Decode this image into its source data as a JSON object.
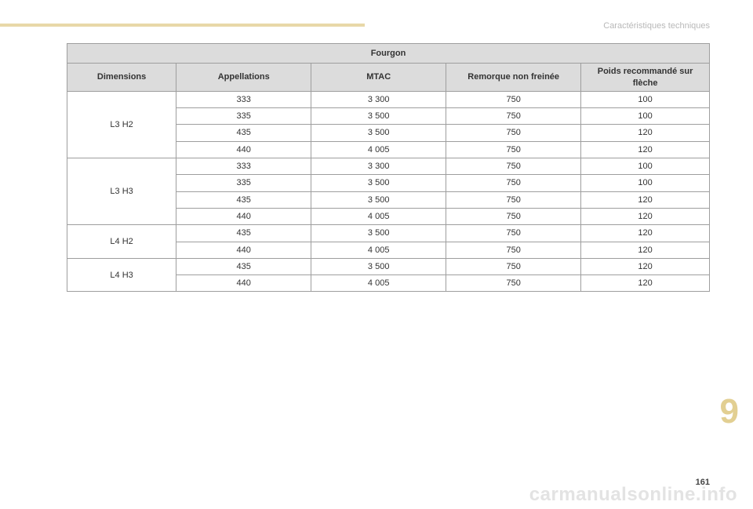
{
  "breadcrumb": "Caractéristiques techniques",
  "section_number": "9",
  "page_number": "161",
  "watermark": "carmanualsonline.info",
  "table": {
    "type": "table",
    "title": "Fourgon",
    "columns": [
      "Dimensions",
      "Appellations",
      "MTAC",
      "Remorque non freinée",
      "Poids recommandé sur flèche"
    ],
    "groups": [
      {
        "dim": "L3 H2",
        "rows": [
          {
            "app": "333",
            "mtac": "3 300",
            "rem": "750",
            "poids": "100"
          },
          {
            "app": "335",
            "mtac": "3 500",
            "rem": "750",
            "poids": "100"
          },
          {
            "app": "435",
            "mtac": "3 500",
            "rem": "750",
            "poids": "120"
          },
          {
            "app": "440",
            "mtac": "4 005",
            "rem": "750",
            "poids": "120"
          }
        ]
      },
      {
        "dim": "L3 H3",
        "rows": [
          {
            "app": "333",
            "mtac": "3 300",
            "rem": "750",
            "poids": "100"
          },
          {
            "app": "335",
            "mtac": "3 500",
            "rem": "750",
            "poids": "100"
          },
          {
            "app": "435",
            "mtac": "3 500",
            "rem": "750",
            "poids": "120"
          },
          {
            "app": "440",
            "mtac": "4 005",
            "rem": "750",
            "poids": "120"
          }
        ]
      },
      {
        "dim": "L4 H2",
        "rows": [
          {
            "app": "435",
            "mtac": "3 500",
            "rem": "750",
            "poids": "120"
          },
          {
            "app": "440",
            "mtac": "4 005",
            "rem": "750",
            "poids": "120"
          }
        ]
      },
      {
        "dim": "L4 H3",
        "rows": [
          {
            "app": "435",
            "mtac": "3 500",
            "rem": "750",
            "poids": "120"
          },
          {
            "app": "440",
            "mtac": "4 005",
            "rem": "750",
            "poids": "120"
          }
        ]
      }
    ],
    "header_bg": "#dcdcdc",
    "border_color": "#9e9e9e",
    "font_size_pt": 11
  }
}
